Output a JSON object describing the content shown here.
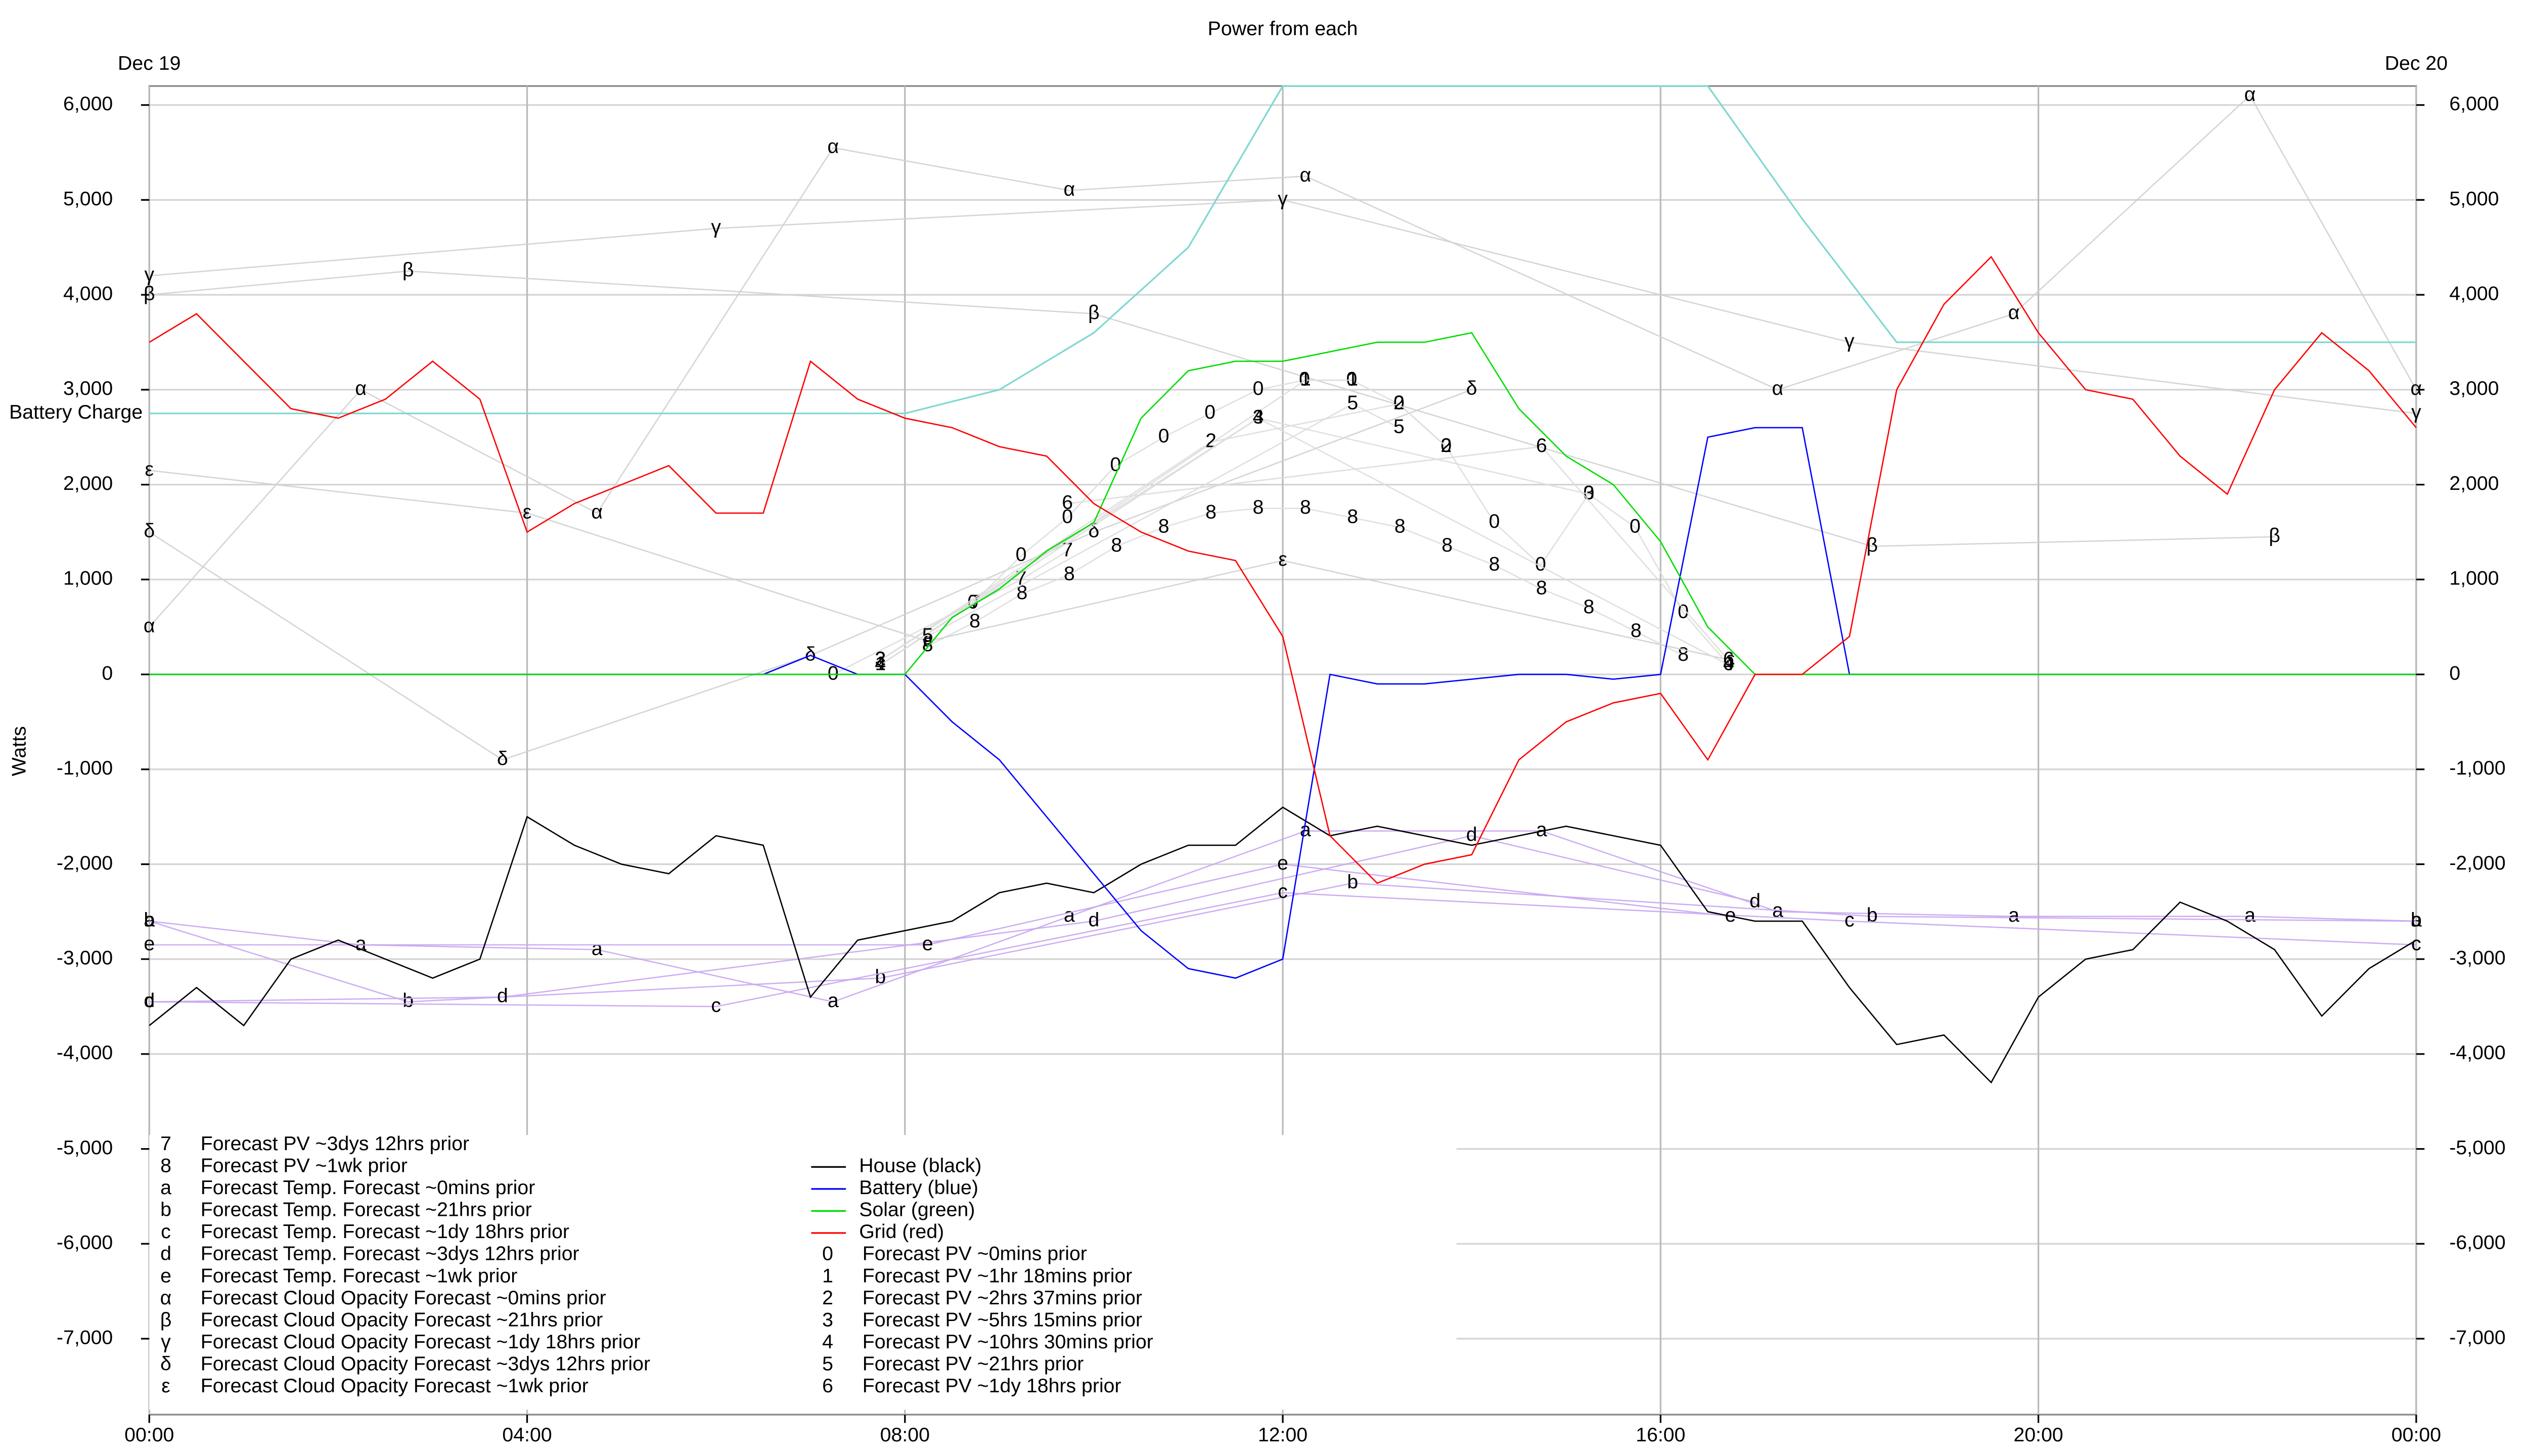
{
  "chart_data": {
    "type": "line",
    "title": "Power from each",
    "y_label": "Watts",
    "grid": true,
    "xlim": [
      0,
      24
    ],
    "ylim": [
      -7800,
      6200
    ],
    "xticks": [
      {
        "value": 0,
        "label": "00:00"
      },
      {
        "value": 4,
        "label": "04:00"
      },
      {
        "value": 8,
        "label": "08:00"
      },
      {
        "value": 12,
        "label": "12:00"
      },
      {
        "value": 16,
        "label": "16:00"
      },
      {
        "value": 20,
        "label": "20:00"
      },
      {
        "value": 24,
        "label": "00:00"
      }
    ],
    "date_labels": [
      {
        "value": 0,
        "label": "Dec 19"
      },
      {
        "value": 24,
        "label": "Dec 20"
      }
    ],
    "yticks": [
      {
        "value": -7000,
        "label": "-7,000"
      },
      {
        "value": -6000,
        "label": "-6,000"
      },
      {
        "value": -5000,
        "label": "-5,000"
      },
      {
        "value": -4000,
        "label": "-4,000"
      },
      {
        "value": -3000,
        "label": "-3,000"
      },
      {
        "value": -2000,
        "label": "-2,000"
      },
      {
        "value": -1000,
        "label": "-1,000"
      },
      0,
      {
        "value": 1000,
        "label": "1,000"
      },
      {
        "value": 2000,
        "label": "2,000"
      },
      {
        "value": 3000,
        "label": "3,000"
      },
      {
        "value": 4000,
        "label": "4,000"
      },
      {
        "value": 5000,
        "label": "5,000"
      },
      {
        "value": 6000,
        "label": "6,000"
      }
    ],
    "x": [
      0,
      0.5,
      1,
      1.5,
      2,
      2.5,
      3,
      3.5,
      4,
      4.5,
      5,
      5.5,
      6,
      6.5,
      7,
      7.5,
      8,
      8.5,
      9,
      9.5,
      10,
      10.5,
      11,
      11.5,
      12,
      12.5,
      13,
      13.5,
      14,
      14.5,
      15,
      15.5,
      16,
      16.5,
      17,
      17.5,
      18,
      18.5,
      19,
      19.5,
      20,
      20.5,
      21,
      21.5,
      22,
      22.5,
      23,
      23.5,
      24
    ],
    "battery_charge": {
      "label": "Battery Charge",
      "color": "#7fd8d0",
      "x": [
        0,
        4,
        8,
        9,
        10,
        11,
        12,
        13,
        14,
        15,
        16,
        16.5,
        17.5,
        18.5,
        24
      ],
      "values": [
        2750,
        2750,
        2750,
        3000,
        3600,
        4500,
        6200,
        6200,
        6200,
        6200,
        6200,
        6200,
        4800,
        3500,
        3500
      ]
    },
    "series": [
      {
        "name": "House (black)",
        "color": "#000000",
        "values": [
          -3700,
          -3300,
          -3700,
          -3000,
          -2800,
          -3000,
          -3200,
          -3000,
          -1500,
          -1800,
          -2000,
          -2100,
          -1700,
          -1800,
          -3400,
          -2800,
          -2700,
          -2600,
          -2300,
          -2200,
          -2300,
          -2000,
          -1800,
          -1800,
          -1400,
          -1700,
          -1600,
          -1700,
          -1800,
          -1700,
          -1600,
          -1700,
          -1800,
          -2500,
          -2600,
          -2600,
          -3300,
          -3900,
          -3800,
          -4300,
          -3400,
          -3000,
          -2900,
          -2400,
          -2600,
          -2900,
          -3600,
          -3100,
          -2800
        ]
      },
      {
        "name": "Battery (blue)",
        "color": "#0000ff",
        "values": [
          0,
          0,
          0,
          0,
          0,
          0,
          0,
          0,
          0,
          0,
          0,
          0,
          0,
          0,
          200,
          0,
          0,
          -500,
          -900,
          -1500,
          -2100,
          -2700,
          -3100,
          -3200,
          -3000,
          0,
          -100,
          -100,
          -50,
          0,
          0,
          -50,
          0,
          2500,
          2600,
          2600,
          0,
          0,
          0,
          0,
          0,
          0,
          0,
          0,
          0,
          0,
          0,
          0,
          0
        ]
      },
      {
        "name": "Solar (green)",
        "color": "#00dd00",
        "values": [
          0,
          0,
          0,
          0,
          0,
          0,
          0,
          0,
          0,
          0,
          0,
          0,
          0,
          0,
          0,
          0,
          0,
          600,
          900,
          1300,
          1600,
          2700,
          3200,
          3300,
          3300,
          3400,
          3500,
          3500,
          3600,
          2800,
          2300,
          2000,
          1400,
          500,
          0,
          0,
          0,
          0,
          0,
          0,
          0,
          0,
          0,
          0,
          0,
          0,
          0,
          0,
          0
        ]
      },
      {
        "name": "Grid (red)",
        "color": "#ff0000",
        "values": [
          3500,
          3800,
          3300,
          2800,
          2700,
          2900,
          3300,
          2900,
          1500,
          1800,
          2000,
          2200,
          1700,
          1700,
          3300,
          2900,
          2700,
          2600,
          2400,
          2300,
          1800,
          1500,
          1300,
          1200,
          400,
          -1700,
          -2200,
          -2000,
          -1900,
          -900,
          -500,
          -300,
          -200,
          -900,
          0,
          0,
          400,
          3000,
          3900,
          4400,
          3600,
          3000,
          2900,
          2300,
          1900,
          3000,
          3600,
          3200,
          2600
        ]
      }
    ],
    "forecasts": [
      {
        "marker": "7",
        "name": "Forecast PV ~3dys 12hrs prior",
        "color": "#dddddd",
        "x": [
          8.74,
          9.23,
          9.72
        ],
        "values": [
          750,
          1000,
          1300
        ]
      },
      {
        "marker": "8",
        "name": "Forecast PV ~1wk prior",
        "color": "#dddddd",
        "x": [
          8.24,
          8.74,
          9.24,
          9.74,
          10.24,
          10.74,
          11.24,
          11.74,
          12.24,
          12.74,
          13.24,
          13.74,
          14.24,
          14.74,
          15.24,
          15.74,
          16.24
        ],
        "values": [
          300,
          550,
          850,
          1050,
          1350,
          1550,
          1700,
          1750,
          1750,
          1650,
          1550,
          1350,
          1150,
          900,
          700,
          450,
          200
        ]
      },
      {
        "marker": "a",
        "name": "Forecast Temp. Forecast ~0mins prior",
        "color": "#c9a6f2",
        "x": [
          0,
          2.24,
          4.74,
          7.24,
          9.74,
          12.24,
          14.74,
          17.24,
          19.74,
          22.24,
          24
        ],
        "values": [
          -2600,
          -2850,
          -2900,
          -3450,
          -2550,
          -1650,
          -1650,
          -2500,
          -2550,
          -2550,
          -2600
        ]
      },
      {
        "marker": "b",
        "name": "Forecast Temp. Forecast ~21hrs prior",
        "color": "#c9a6f2",
        "x": [
          0,
          2.74,
          7.74,
          12.74,
          18.24,
          24
        ],
        "values": [
          -2600,
          -3450,
          -3200,
          -2200,
          -2550,
          -2600
        ]
      },
      {
        "marker": "c",
        "name": "Forecast Temp. Forecast ~1dy 18hrs prior",
        "color": "#c9a6f2",
        "x": [
          0,
          6,
          12,
          18,
          24
        ],
        "values": [
          -3450,
          -3500,
          -2300,
          -2600,
          -2850
        ]
      },
      {
        "marker": "d",
        "name": "Forecast Temp. Forecast ~3dys 12hrs prior",
        "color": "#c9a6f2",
        "x": [
          0,
          3.74,
          10,
          14,
          17
        ],
        "values": [
          -3450,
          -3400,
          -2600,
          -1700,
          -2400
        ]
      },
      {
        "marker": "e",
        "name": "Forecast Temp. Forecast ~1wk prior",
        "color": "#c9a6f2",
        "x": [
          0,
          8.24,
          12,
          16.74
        ],
        "values": [
          -2850,
          -2850,
          -2000,
          -2550
        ]
      },
      {
        "marker": "α",
        "name": "Forecast Cloud Opacity Forecast ~0mins prior",
        "color": "#d0d0d0",
        "x": [
          0,
          2.24,
          4.74,
          7.24,
          9.74,
          12.24,
          17.24,
          19.74,
          22.24,
          24
        ],
        "values": [
          500,
          3000,
          1700,
          5550,
          5100,
          5250,
          3000,
          3800,
          6100,
          3000
        ]
      },
      {
        "marker": "β",
        "name": "Forecast Cloud Opacity Forecast ~21hrs prior",
        "color": "#d0d0d0",
        "x": [
          0,
          2.74,
          10,
          18.24,
          22.5
        ],
        "values": [
          4000,
          4250,
          3800,
          1350,
          1450
        ]
      },
      {
        "marker": "γ",
        "name": "Forecast Cloud Opacity Forecast ~1dy 18hrs prior",
        "color": "#d0d0d0",
        "x": [
          0,
          6,
          12,
          18,
          24
        ],
        "values": [
          4200,
          4700,
          5000,
          3500,
          2750
        ]
      },
      {
        "marker": "δ",
        "name": "Forecast Cloud Opacity Forecast ~3dys 12hrs prior",
        "color": "#d0d0d0",
        "x": [
          0,
          3.74,
          7,
          10,
          14
        ],
        "values": [
          1500,
          -900,
          200,
          1500,
          3000
        ]
      },
      {
        "marker": "ε",
        "name": "Forecast Cloud Opacity Forecast ~1wk prior",
        "color": "#d0d0d0",
        "x": [
          0,
          4,
          8.24,
          12,
          16.74
        ],
        "values": [
          2150,
          1700,
          350,
          1200,
          150
        ]
      },
      {
        "marker": "0",
        "name": "Forecast PV ~0mins prior",
        "color": "#dddddd",
        "x": [
          7.24,
          8.72,
          9.23,
          9.72,
          10.23,
          10.74,
          11.23,
          11.74,
          12.23,
          12.73,
          13.23,
          13.73,
          14.24,
          14.73,
          15.24,
          15.73,
          16.24,
          16.72
        ],
        "values": [
          0,
          750,
          1250,
          1650,
          2200,
          2500,
          2750,
          3000,
          3100,
          3100,
          2850,
          2400,
          1600,
          1150,
          1900,
          1550,
          650,
          100
        ]
      },
      {
        "marker": "1",
        "name": "Forecast PV ~1hr 18mins prior",
        "color": "#dddddd",
        "x": [
          7.74,
          12.24,
          12.74
        ],
        "values": [
          100,
          3100,
          3100
        ]
      },
      {
        "marker": "2",
        "name": "Forecast PV ~2hrs 37mins prior",
        "color": "#dddddd",
        "x": [
          7.74,
          11.24,
          13.23,
          13.73
        ],
        "values": [
          150,
          2450,
          2850,
          2400
        ]
      },
      {
        "marker": "3",
        "name": "Forecast PV ~5hrs 15mins prior",
        "color": "#dddddd",
        "x": [
          7.74,
          11.74,
          15.24
        ],
        "values": [
          150,
          2700,
          1900
        ]
      },
      {
        "marker": "4",
        "name": "Forecast PV ~10hrs 30mins prior",
        "color": "#dddddd",
        "x": [
          7.74,
          11.74,
          16.72
        ],
        "values": [
          100,
          2700,
          100
        ]
      },
      {
        "marker": "5",
        "name": "Forecast PV ~21hrs prior",
        "color": "#dddddd",
        "x": [
          8.24,
          12.74,
          13.23
        ],
        "values": [
          400,
          2850,
          2600
        ]
      },
      {
        "marker": "6",
        "name": "Forecast PV ~1dy 18hrs prior",
        "color": "#dddddd",
        "x": [
          9.72,
          14.74,
          16.72
        ],
        "values": [
          1800,
          2400,
          150
        ]
      }
    ]
  }
}
